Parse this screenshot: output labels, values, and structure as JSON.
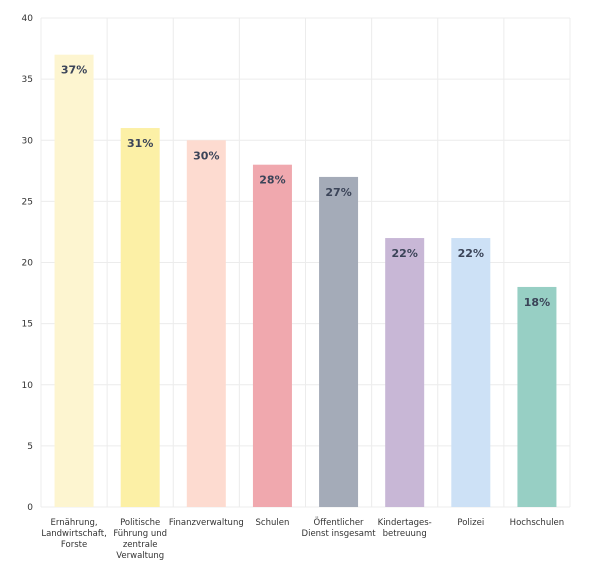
{
  "chart_data": {
    "type": "bar",
    "title": "",
    "xlabel": "",
    "ylabel": "",
    "ylim": [
      0,
      40
    ],
    "yticks": [
      0,
      5,
      10,
      15,
      20,
      25,
      30,
      35,
      40
    ],
    "grid": true,
    "legend": "none",
    "categories": [
      "Ernährung, Landwirtschaft, Forste",
      "Politische Führung und zentrale Verwaltung",
      "Finanzverwaltung",
      "Schulen",
      "Öffentlicher Dienst insgesamt",
      "Kindertages-betreuung",
      "Polizei",
      "Hochschulen"
    ],
    "category_lines": [
      [
        "Ernährung,",
        "Landwirtschaft,",
        "Forste"
      ],
      [
        "Politische",
        "Führung und",
        "zentrale",
        "Verwaltung"
      ],
      [
        "Finanzverwaltung"
      ],
      [
        "Schulen"
      ],
      [
        "Öffentlicher",
        "Dienst insgesamt"
      ],
      [
        "Kindertages-",
        "betreuung"
      ],
      [
        "Polizei"
      ],
      [
        "Hochschulen"
      ]
    ],
    "values": [
      37,
      31,
      30,
      28,
      27,
      22,
      22,
      18
    ],
    "value_labels": [
      "37%",
      "31%",
      "30%",
      "28%",
      "27%",
      "22%",
      "22%",
      "18%"
    ],
    "colors": [
      "#fdf5d0",
      "#fcf0a6",
      "#fddbd0",
      "#f0a8ae",
      "#a4abb8",
      "#c8b7d6",
      "#cde1f6",
      "#97cfc4"
    ]
  }
}
